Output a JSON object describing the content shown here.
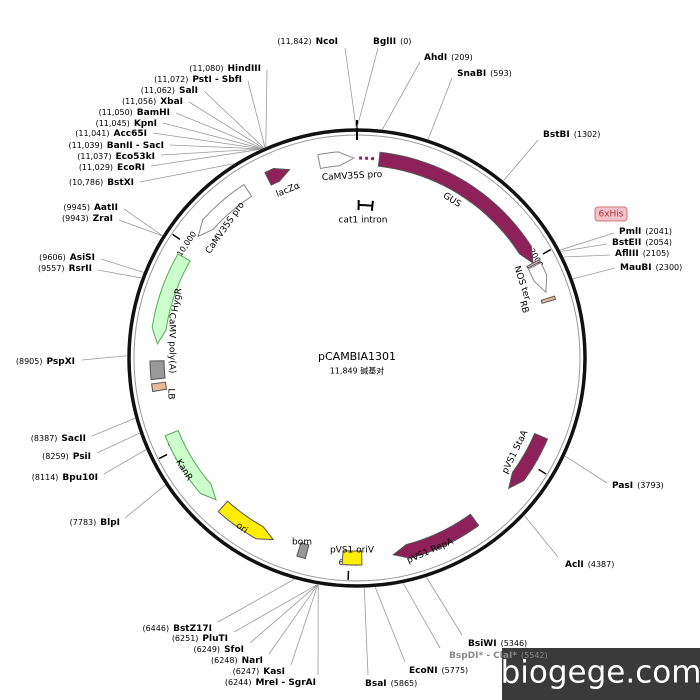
{
  "title": "pCAMBIA1301",
  "length": {
    "value": 11849,
    "label": "11,849 碱基对"
  },
  "ticks": [
    2000,
    4000,
    6000,
    8000,
    {
      "value": 10000,
      "label": "10,000"
    }
  ],
  "sites": [
    {
      "name": "NcoI",
      "position": {
        "value": 11842,
        "label": "(11,842)"
      }
    },
    {
      "name": "BglII",
      "position": {
        "value": 0,
        "label": "(0)"
      }
    },
    {
      "name": "AhdI",
      "position": {
        "value": 209,
        "label": "(209)"
      }
    },
    {
      "name": "SnaBI",
      "position": {
        "value": 593,
        "label": "(593)"
      }
    },
    {
      "name": "BstBI",
      "position": {
        "value": 1302,
        "label": "(1302)"
      }
    },
    {
      "name": "PmlI",
      "position": {
        "value": 2041,
        "label": "(2041)"
      }
    },
    {
      "name": "BstEII",
      "position": {
        "value": 2054,
        "label": "(2054)"
      }
    },
    {
      "name": "AflIII",
      "position": {
        "value": 2105,
        "label": "(2105)"
      }
    },
    {
      "name": "MauBI",
      "position": {
        "value": 2300,
        "label": "(2300)"
      }
    },
    {
      "name": "PasI",
      "position": {
        "value": 3793,
        "label": "(3793)"
      }
    },
    {
      "name": "AclI",
      "position": {
        "value": 4387,
        "label": "(4387)"
      }
    },
    {
      "name": "BsiWI",
      "position": {
        "value": 5346,
        "label": "(5346)"
      }
    },
    {
      "name": "BspDI* - ClaI*",
      "position": {
        "value": 5542,
        "label": "(5542)"
      },
      "color": "#888888"
    },
    {
      "name": "EcoNI",
      "position": {
        "value": 5775,
        "label": "(5775)"
      }
    },
    {
      "name": "BsaI",
      "position": {
        "value": 5865,
        "label": "(5865)"
      }
    },
    {
      "name": "BstZ17I",
      "position": {
        "value": 6446,
        "label": "(6446)"
      }
    },
    {
      "name": "PluTI",
      "position": {
        "value": 6251,
        "label": "(6251)"
      }
    },
    {
      "name": "SfoI",
      "position": {
        "value": 6249,
        "label": "(6249)"
      }
    },
    {
      "name": "NarI",
      "position": {
        "value": 6248,
        "label": "(6248)"
      }
    },
    {
      "name": "KasI",
      "position": {
        "value": 6247,
        "label": "(6247)"
      }
    },
    {
      "name": "MreI - SgrAI",
      "position": {
        "value": 6244,
        "label": "(6244)"
      }
    },
    {
      "name": "BlpI",
      "position": {
        "value": 7783,
        "label": "(7783)"
      }
    },
    {
      "name": "Bpu10I",
      "position": {
        "value": 8114,
        "label": "(8114)"
      }
    },
    {
      "name": "PsiI",
      "position": {
        "value": 8259,
        "label": "(8259)"
      }
    },
    {
      "name": "SacII",
      "position": {
        "value": 8387,
        "label": "(8387)"
      }
    },
    {
      "name": "PspXI",
      "position": {
        "value": 8905,
        "label": "(8905)"
      }
    },
    {
      "name": "RsrII",
      "position": {
        "value": 9557,
        "label": "(9557)"
      }
    },
    {
      "name": "AsiSI",
      "position": {
        "value": 9606,
        "label": "(9606)"
      }
    },
    {
      "name": "ZraI",
      "position": {
        "value": 9943,
        "label": "(9943)"
      }
    },
    {
      "name": "AatII",
      "position": {
        "value": 9945,
        "label": "(9945)"
      }
    },
    {
      "name": "BstXI",
      "position": {
        "value": 10786,
        "label": "(10,786)"
      }
    },
    {
      "name": "EcoRI",
      "position": {
        "value": 11029,
        "label": "(11,029)"
      }
    },
    {
      "name": "Eco53kI",
      "position": {
        "value": 11037,
        "label": "(11,037)"
      }
    },
    {
      "name": "BanII - SacI",
      "position": {
        "value": 11039,
        "label": "(11,039)"
      }
    },
    {
      "name": "Acc65I",
      "position": {
        "value": 11041,
        "label": "(11,041)"
      }
    },
    {
      "name": "KpnI",
      "position": {
        "value": 11045,
        "label": "(11,045)"
      }
    },
    {
      "name": "BamHI",
      "position": {
        "value": 11050,
        "label": "(11,050)"
      }
    },
    {
      "name": "XbaI",
      "position": {
        "value": 11056,
        "label": "(11,056)"
      }
    },
    {
      "name": "SalI",
      "position": {
        "value": 11062,
        "label": "(11,062)"
      }
    },
    {
      "name": "PstI - SbfI",
      "position": {
        "value": 11072,
        "label": "(11,072)"
      }
    },
    {
      "name": "HindIII",
      "position": {
        "value": 11080,
        "label": "(11,080)"
      }
    }
  ],
  "features": [
    {
      "name": "lacZα",
      "start": 10980,
      "end": 11200,
      "strand": 1,
      "shape": "arrow",
      "color": "#8e2159"
    },
    {
      "name": "CaMV35S pro",
      "start": 11490,
      "end": 11820,
      "strand": 1,
      "shape": "arrow",
      "color": "#ffffff"
    },
    {
      "name": "GUS",
      "start": 210,
      "end": 2030,
      "strand": 1,
      "shape": "arrow",
      "color": "#8e2159"
    },
    {
      "name": "cat1 intron",
      "start": 20,
      "end": 190,
      "strand": 0,
      "shape": "bracket",
      "color": "#000000"
    },
    {
      "name": "6xHis",
      "start": 2030,
      "end": 2048,
      "strand": 0,
      "shape": "box",
      "color": "#f4c2cc"
    },
    {
      "name": "NOS ter",
      "start": 2060,
      "end": 2330,
      "strand": 1,
      "shape": "arrow",
      "color": "#ffffff"
    },
    {
      "name": "RB",
      "start": 2390,
      "end": 2420,
      "strand": 0,
      "shape": "box",
      "color": "#e8b89a"
    },
    {
      "name": "pVS1 StaA",
      "start": 3720,
      "end": 4300,
      "strand": 1,
      "shape": "arrow",
      "color": "#8e2159"
    },
    {
      "name": "pVS1 RepA",
      "start": 4740,
      "end": 5580,
      "strand": 1,
      "shape": "arrow",
      "color": "#8e2159"
    },
    {
      "name": "pVS1 oriV",
      "start": 5880,
      "end": 6060,
      "strand": 0,
      "shape": "box",
      "color": "#ffee00"
    },
    {
      "name": "bom",
      "start": 6400,
      "end": 6480,
      "strand": 0,
      "shape": "box",
      "color": "#999999"
    },
    {
      "name": "ori",
      "start": 6740,
      "end": 7310,
      "strand": -1,
      "shape": "arrow",
      "color": "#ffee00"
    },
    {
      "name": "KanR",
      "start": 7400,
      "end": 8160,
      "strand": -1,
      "shape": "arrow",
      "color": "#ccffcc"
    },
    {
      "name": "LB",
      "start": 8580,
      "end": 8650,
      "strand": 0,
      "shape": "box",
      "color": "#e8b89a"
    },
    {
      "name": "CaMV poly(A)",
      "start": 8690,
      "end": 8860,
      "strand": 0,
      "shape": "box",
      "color": "#999999"
    },
    {
      "name": "HygR",
      "start": 9020,
      "end": 9880,
      "strand": -1,
      "shape": "arrow",
      "color": "#ccffcc"
    },
    {
      "name": "CaMV35S pro",
      "start": 10120,
      "end": 10760,
      "strand": -1,
      "shape": "arrow",
      "color": "#ffffff"
    }
  ],
  "watermark": "biogege.com"
}
